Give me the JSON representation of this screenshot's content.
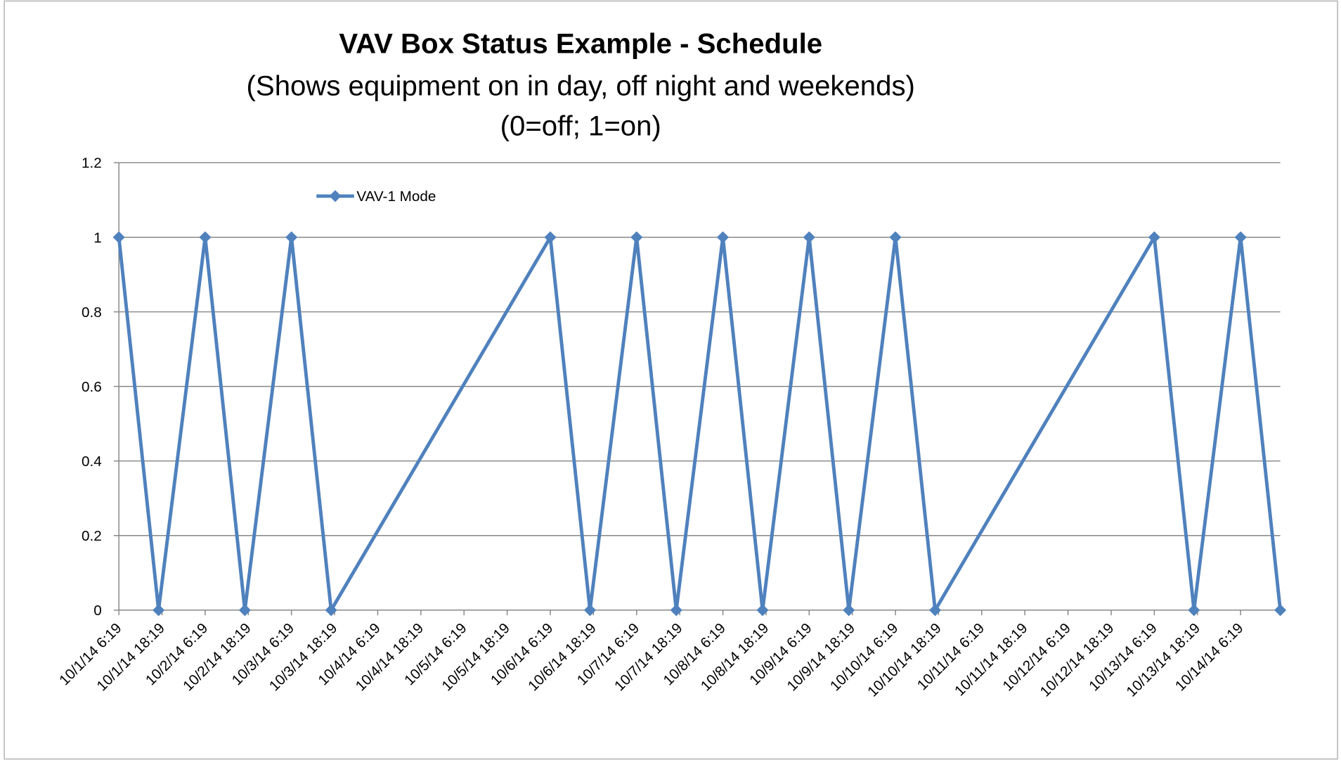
{
  "chart_data": {
    "type": "line",
    "title": "VAV Box Status Example - Schedule",
    "subtitle": [
      "(Shows equipment on in day, off night and weekends)",
      "(0=off; 1=on)"
    ],
    "x": [
      0,
      0.92,
      2,
      2.92,
      4,
      4.92,
      10,
      10.92,
      12,
      12.92,
      14,
      14.92,
      16,
      16.92,
      18,
      18.92,
      24,
      24.92,
      26,
      26.92
    ],
    "series": [
      {
        "name": "VAV-1 Mode",
        "color": "#4f81bd",
        "values": [
          1,
          0,
          1,
          0,
          1,
          0,
          1,
          0,
          1,
          0,
          1,
          0,
          1,
          0,
          1,
          0,
          1,
          0,
          1,
          0
        ]
      }
    ],
    "xlim": [
      0,
      26.92
    ],
    "xticks": [
      {
        "value": 0,
        "label": "10/1/14 6:19"
      },
      {
        "value": 1,
        "label": "10/1/14 18:19"
      },
      {
        "value": 2,
        "label": "10/2/14 6:19"
      },
      {
        "value": 3,
        "label": "10/2/14 18:19"
      },
      {
        "value": 4,
        "label": "10/3/14 6:19"
      },
      {
        "value": 5,
        "label": "10/3/14 18:19"
      },
      {
        "value": 6,
        "label": "10/4/14 6:19"
      },
      {
        "value": 7,
        "label": "10/4/14 18:19"
      },
      {
        "value": 8,
        "label": "10/5/14 6:19"
      },
      {
        "value": 9,
        "label": "10/5/14 18:19"
      },
      {
        "value": 10,
        "label": "10/6/14 6:19"
      },
      {
        "value": 11,
        "label": "10/6/14 18:19"
      },
      {
        "value": 12,
        "label": "10/7/14 6:19"
      },
      {
        "value": 13,
        "label": "10/7/14 18:19"
      },
      {
        "value": 14,
        "label": "10/8/14 6:19"
      },
      {
        "value": 15,
        "label": "10/8/14 18:19"
      },
      {
        "value": 16,
        "label": "10/9/14 6:19"
      },
      {
        "value": 17,
        "label": "10/9/14 18:19"
      },
      {
        "value": 18,
        "label": "10/10/14 6:19"
      },
      {
        "value": 19,
        "label": "10/10/14 18:19"
      },
      {
        "value": 20,
        "label": "10/11/14 6:19"
      },
      {
        "value": 21,
        "label": "10/11/14 18:19"
      },
      {
        "value": 22,
        "label": "10/12/14 6:19"
      },
      {
        "value": 23,
        "label": "10/12/14 18:19"
      },
      {
        "value": 24,
        "label": "10/13/14 6:19"
      },
      {
        "value": 25,
        "label": "10/13/14 18:19"
      },
      {
        "value": 26,
        "label": "10/14/14 6:19"
      }
    ],
    "ylim": [
      0,
      1.2
    ],
    "yticks": [
      0,
      0.2,
      0.4,
      0.6,
      0.8,
      1,
      {
        "value": 1.2,
        "label": "1.2"
      }
    ],
    "grid": true,
    "legend": "top-left"
  }
}
